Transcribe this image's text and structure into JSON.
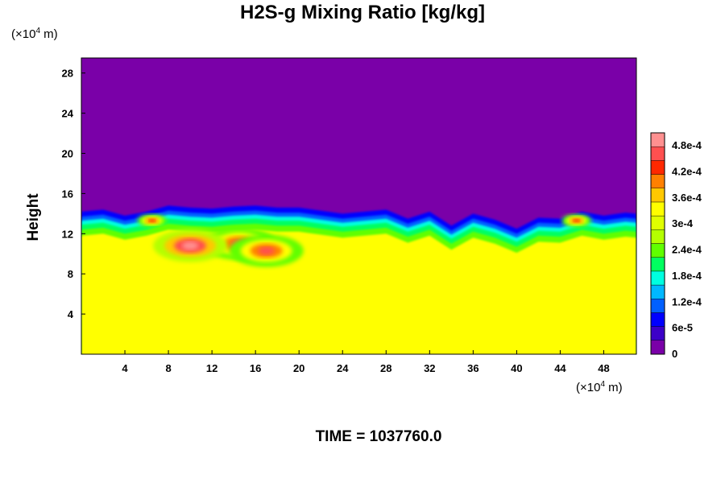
{
  "chart_data": {
    "type": "heatmap",
    "title": "H2S-g Mixing Ratio [kg/kg]",
    "ylabel": "Height",
    "x_unit": {
      "prefix": "(×10",
      "exponent": "4",
      "suffix": " m)"
    },
    "y_unit": {
      "prefix": "(×10",
      "exponent": "4",
      "suffix": " m)"
    },
    "xlim": [
      0,
      51
    ],
    "ylim": [
      0,
      29.5
    ],
    "x_ticks": [
      4,
      8,
      12,
      16,
      20,
      24,
      28,
      32,
      36,
      40,
      44,
      48
    ],
    "x_tick_labels": [
      "4",
      "8",
      "12",
      "16",
      "20",
      "24",
      "28",
      "32",
      "36",
      "40",
      "44",
      "48"
    ],
    "y_ticks": [
      4,
      8,
      12,
      16,
      20,
      24,
      28
    ],
    "y_tick_labels": [
      "4",
      "8",
      "12",
      "16",
      "20",
      "24",
      "28"
    ],
    "colorbar": {
      "range": [
        0,
        0.00051
      ],
      "tick_values": [
        0,
        6e-05,
        0.00012,
        0.00018,
        0.00024,
        0.0003,
        0.00036,
        0.00042,
        0.00048
      ],
      "tick_labels": [
        "0",
        "6e-5",
        "1.2e-4",
        "1.8e-4",
        "2.4e-4",
        "3e-4",
        "3.6e-4",
        "4.2e-4",
        "4.8e-4"
      ],
      "colors": [
        "#7a00a8",
        "#3c00c8",
        "#0000ff",
        "#0060ff",
        "#00b8ff",
        "#00ffe0",
        "#00ff60",
        "#60ff00",
        "#b4ff00",
        "#e0ff00",
        "#ffff00",
        "#ffc800",
        "#ff8000",
        "#ff2800",
        "#ff5050",
        "#ff9090"
      ]
    },
    "field": {
      "upper_value": 0,
      "lower_value": 0.00035,
      "interface_height": 14.5,
      "interface_profile_x": [
        0,
        2,
        4,
        6,
        8,
        10,
        12,
        14,
        16,
        18,
        20,
        22,
        24,
        26,
        28,
        30,
        32,
        34,
        36,
        38,
        40,
        42,
        44,
        46,
        48,
        50,
        51
      ],
      "interface_profile_y": [
        14.2,
        14.4,
        13.8,
        14.2,
        14.8,
        14.6,
        14.5,
        14.7,
        14.8,
        14.6,
        14.6,
        14.3,
        14.0,
        14.2,
        14.4,
        13.5,
        14.2,
        12.8,
        14.0,
        13.4,
        12.5,
        13.6,
        13.5,
        14.2,
        13.8,
        14.1,
        14.0
      ],
      "hotspots": [
        {
          "x": 14.5,
          "y": 11.0,
          "value": 0.00046
        },
        {
          "x": 10.0,
          "y": 10.8,
          "value": 0.0005
        },
        {
          "x": 17.0,
          "y": 10.3,
          "value": 0.00045
        },
        {
          "x": 6.5,
          "y": 13.3,
          "value": 0.00043
        },
        {
          "x": 45.5,
          "y": 13.3,
          "value": 0.00044
        }
      ]
    }
  },
  "footer": {
    "time_label": "TIME = 1037760.0"
  }
}
